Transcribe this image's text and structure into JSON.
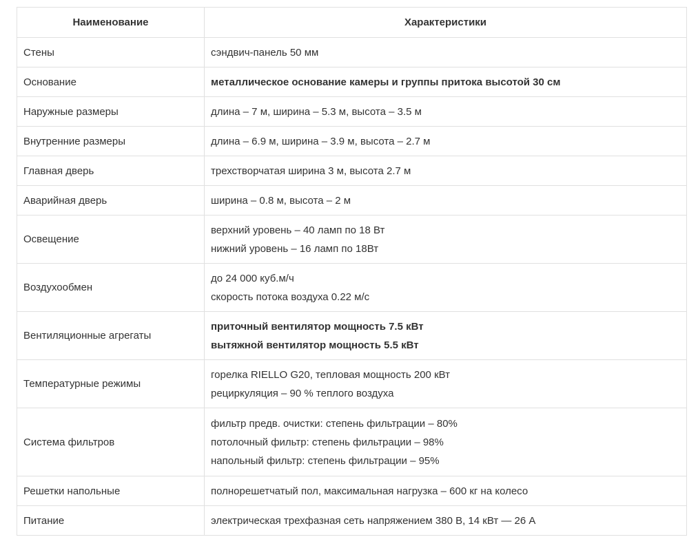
{
  "table": {
    "headers": [
      "Наименование",
      "Характеристики"
    ],
    "rows": [
      {
        "name": "Стены",
        "lines": [
          "сэндвич-панель 50 мм"
        ],
        "bold": false
      },
      {
        "name": "Основание",
        "lines": [
          "металлическое основание камеры и группы притока высотой 30 см"
        ],
        "bold": true
      },
      {
        "name": "Наружные размеры",
        "lines": [
          "длина – 7 м, ширина – 5.3 м, высота – 3.5 м"
        ],
        "bold": false
      },
      {
        "name": "Внутренние размеры",
        "lines": [
          "длина – 6.9 м, ширина – 3.9 м, высота – 2.7 м"
        ],
        "bold": false
      },
      {
        "name": "Главная дверь",
        "lines": [
          "трехстворчатая ширина 3 м, высота 2.7 м"
        ],
        "bold": false
      },
      {
        "name": "Аварийная дверь",
        "lines": [
          "ширина – 0.8 м, высота – 2 м"
        ],
        "bold": false
      },
      {
        "name": "Освещение",
        "lines": [
          "верхний уровень – 40 ламп по 18 Вт",
          "нижний уровень – 16 ламп по 18Вт"
        ],
        "bold": false
      },
      {
        "name": "Воздухообмен",
        "lines": [
          "до 24 000 куб.м/ч",
          "скорость потока воздуха 0.22 м/с"
        ],
        "bold": false
      },
      {
        "name": "Вентиляционные агрегаты",
        "lines": [
          "приточный вентилятор мощность 7.5 кВт",
          "вытяжной вентилятор мощность 5.5 кВт"
        ],
        "bold": true
      },
      {
        "name": "Температурные режимы",
        "lines": [
          "горелка RIELLO G20, тепловая мощность 200 кВт",
          "рециркуляция – 90 % теплого воздуха"
        ],
        "bold": false
      },
      {
        "name": "Система фильтров",
        "lines": [
          "фильтр предв. очистки: степень фильтрации – 80%",
          "потолочный фильтр: степень фильтрации – 98%",
          "напольный фильтр: степень фильтрации – 95%"
        ],
        "bold": false
      },
      {
        "name": "Решетки напольные",
        "lines": [
          "полнорешетчатый пол, максимальная нагрузка – 600 кг на колесо"
        ],
        "bold": false
      },
      {
        "name": "Питание",
        "lines": [
          "электрическая трехфазная сеть напряжением 380 В, 14 кВт — 26 А"
        ],
        "bold": false
      }
    ]
  }
}
